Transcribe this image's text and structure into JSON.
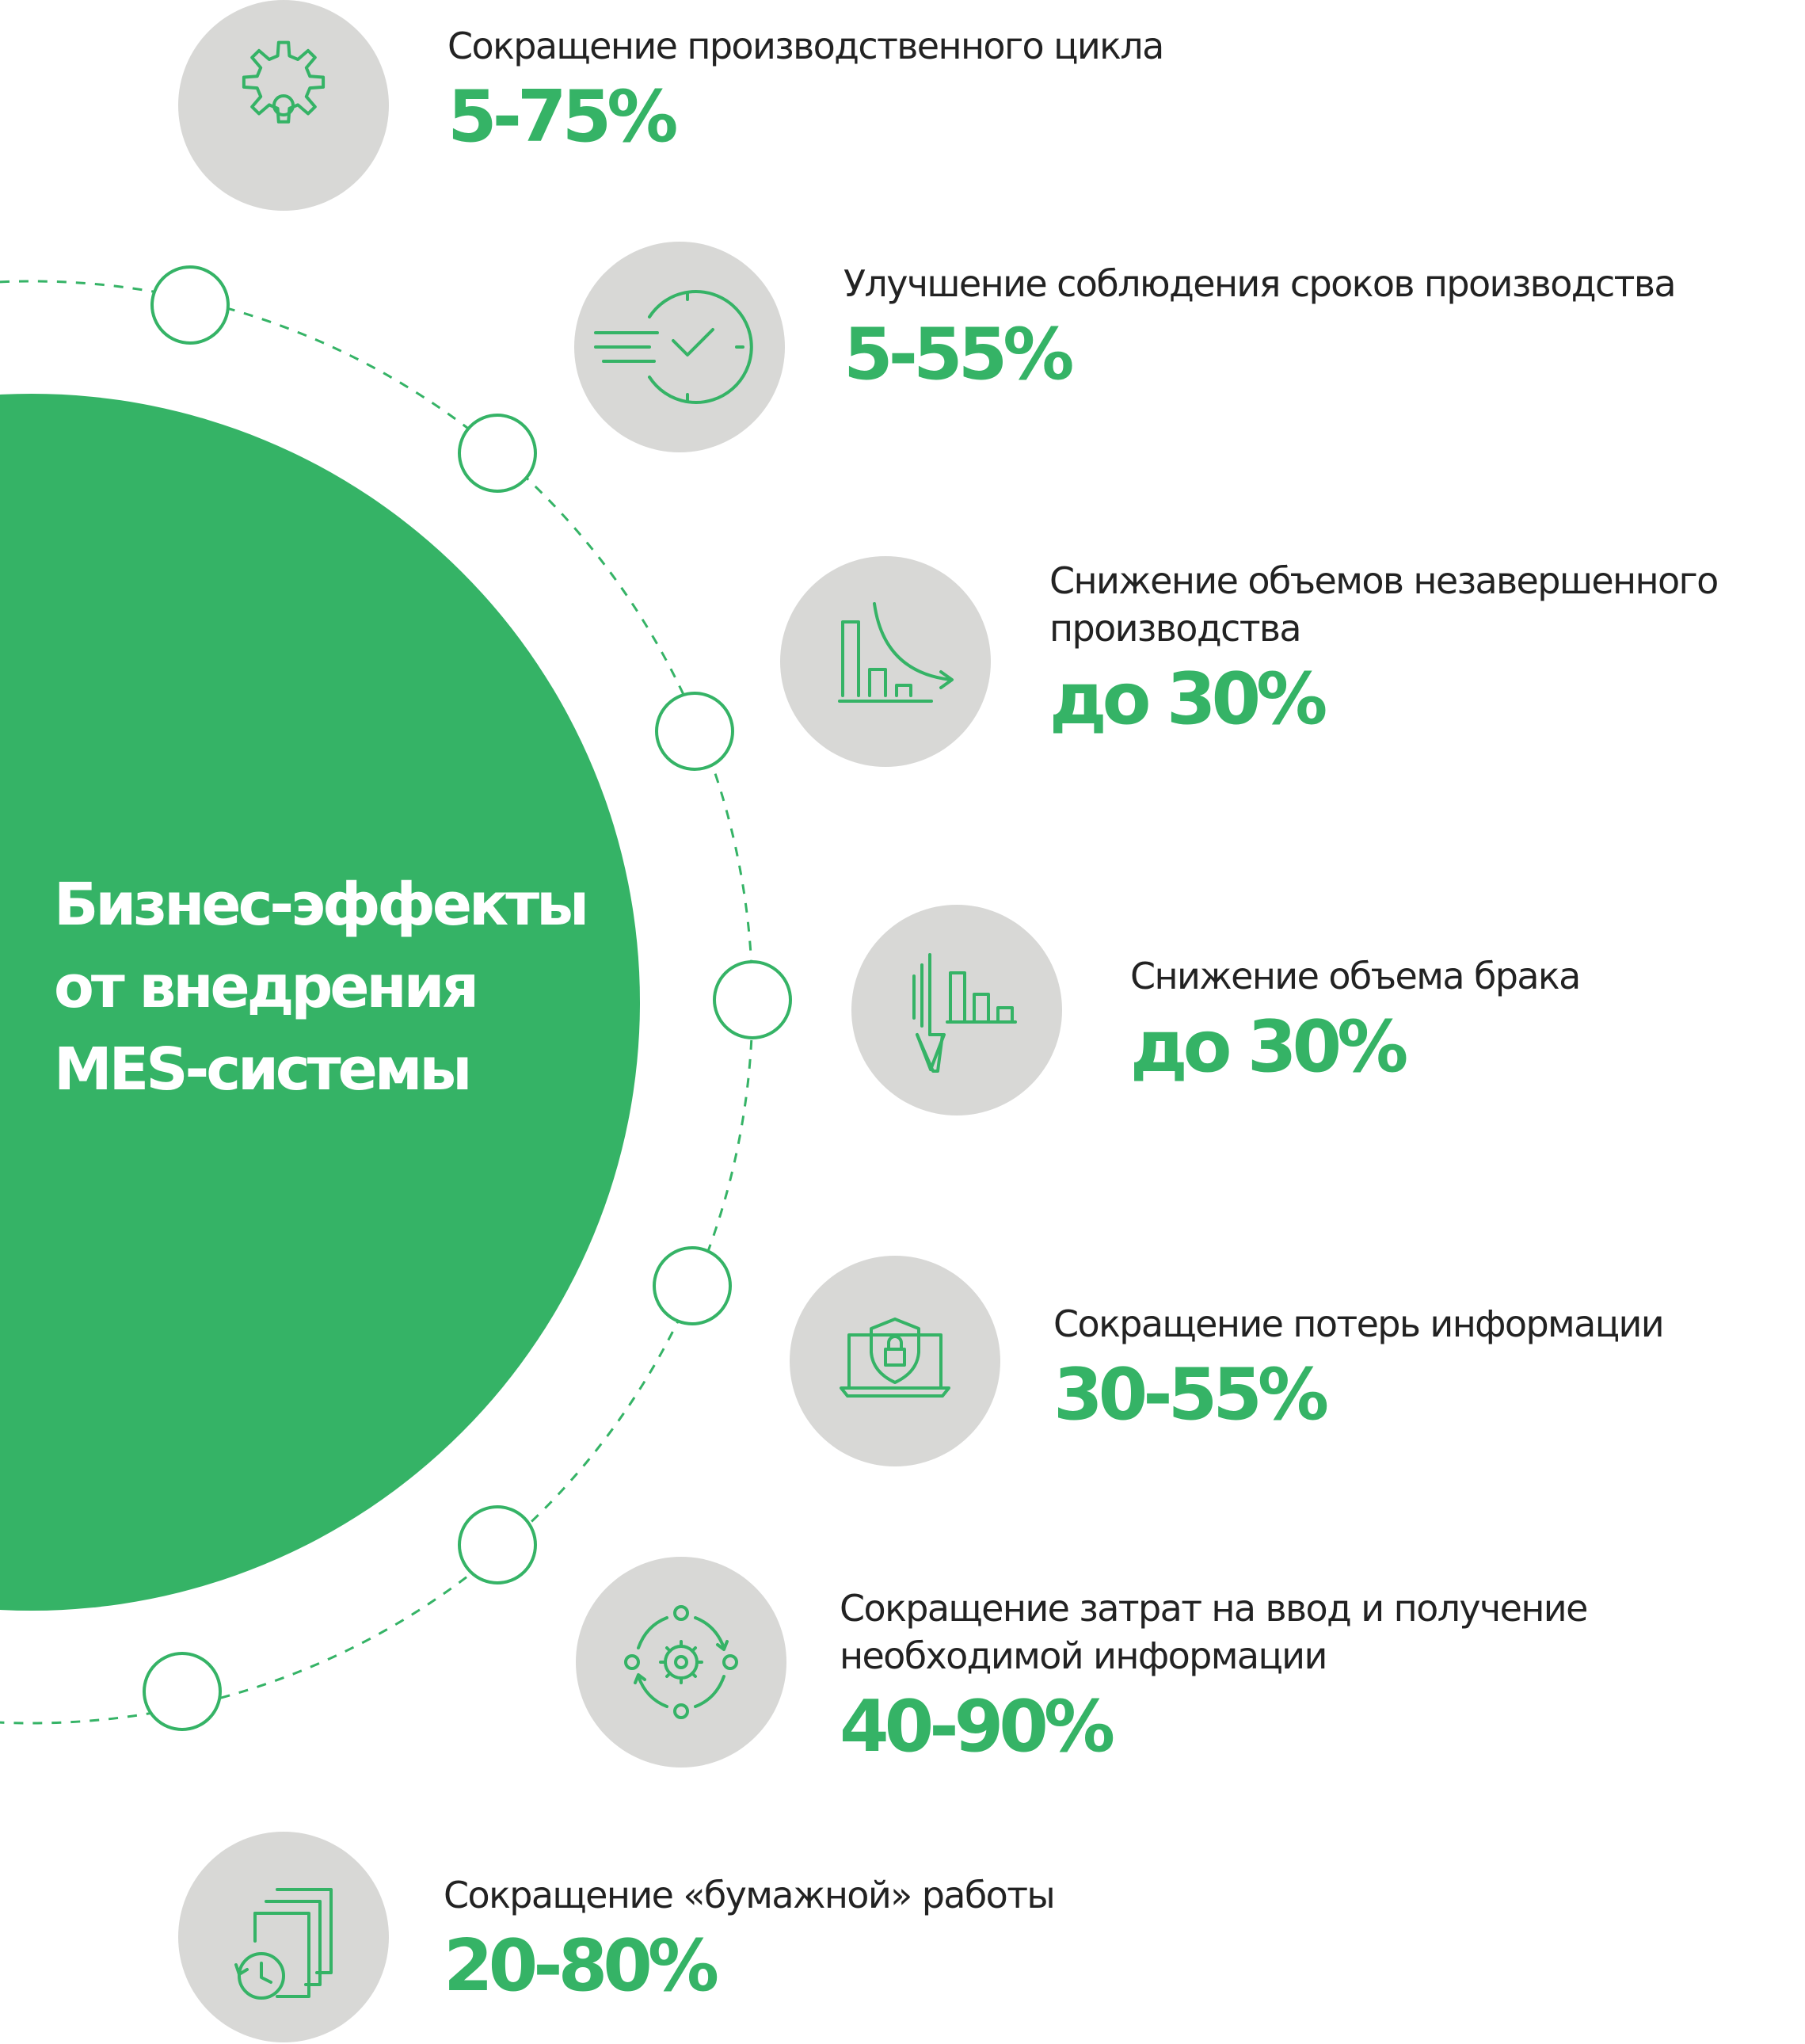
{
  "title_lines": [
    "Бизнес-эффекты",
    "от внедрения",
    "MES-системы"
  ],
  "colors": {
    "accent": "#35b366",
    "icon_circle": "#d8d8d6",
    "text": "#222222",
    "background": "#ffffff"
  },
  "effects": [
    {
      "label": "Сокращение производственного цикла",
      "value": "5-75%",
      "icon": "gear-icon"
    },
    {
      "label": "Улучшение соблюдения сроков производства",
      "value": "5-55%",
      "icon": "clock-speed-icon"
    },
    {
      "label_lines": [
        "Снижение объемов незавершенного",
        "производства"
      ],
      "value": "до 30%",
      "icon": "decreasing-chart-icon"
    },
    {
      "label": "Снижение объема брака",
      "value": "до 30%",
      "icon": "defect-decrease-icon"
    },
    {
      "label": "Сокращение потерь информации",
      "value": "30-55%",
      "icon": "laptop-shield-lock-icon"
    },
    {
      "label_lines": [
        "Сокращение затрат на ввод и получение",
        "необходимой информации"
      ],
      "value": "40-90%",
      "icon": "gear-cycle-icon"
    },
    {
      "label": "Сокращение «бумажной» работы",
      "value": "20-80%",
      "icon": "documents-clock-icon"
    }
  ]
}
